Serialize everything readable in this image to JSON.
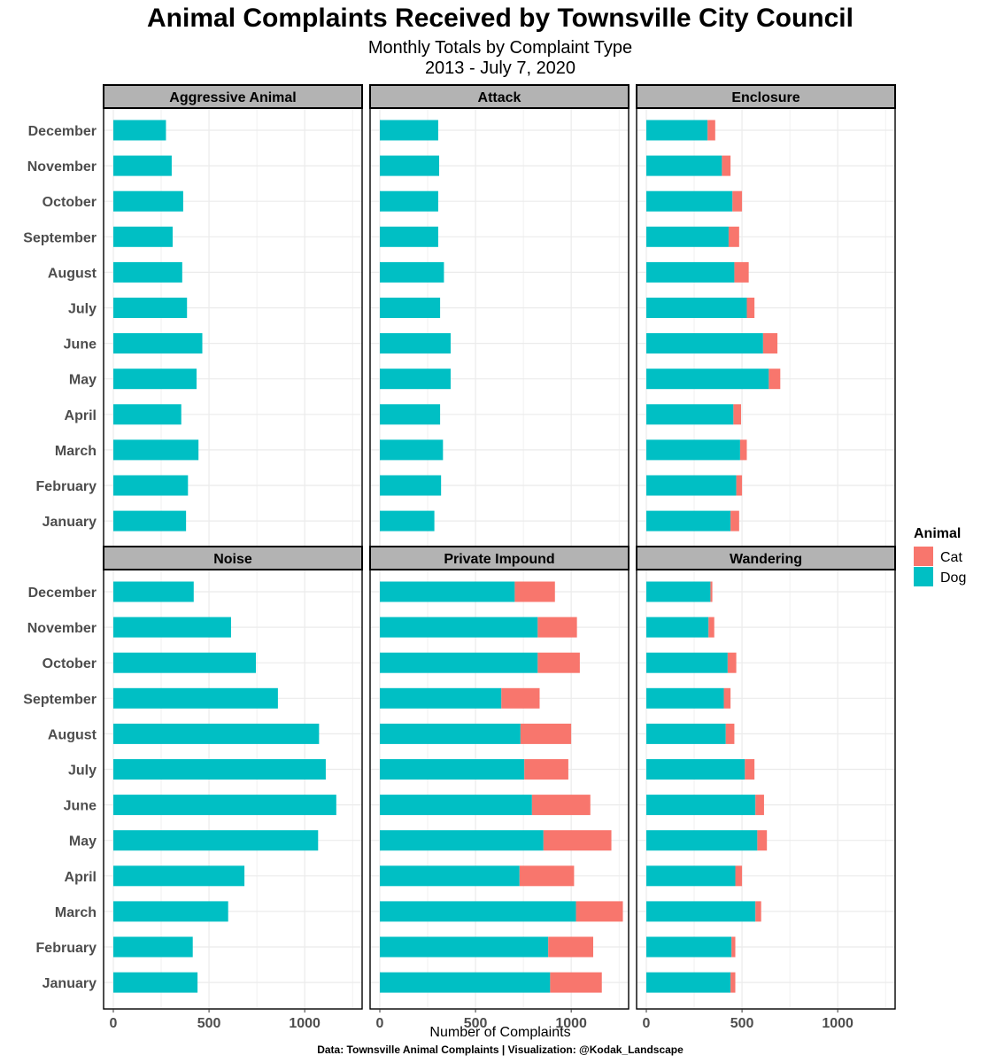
{
  "title": "Animal Complaints Received by Townsville City Council",
  "subtitle_line1": "Monthly Totals by Complaint Type",
  "subtitle_line2": "2013 - July 7, 2020",
  "caption": "Data: Townsville Animal Complaints | Visualization: @Kodak_Landscape",
  "colors": {
    "Dog": "#00BFC4",
    "Cat": "#F8766D",
    "strip_bg": "#b3b3b3",
    "grid": "#ebebeb"
  },
  "chart_data": {
    "type": "bar",
    "orientation": "horizontal",
    "stacked": true,
    "facets": [
      "Aggressive Animal",
      "Attack",
      "Enclosure",
      "Noise",
      "Private Impound",
      "Wandering"
    ],
    "categories": [
      "December",
      "November",
      "October",
      "September",
      "August",
      "July",
      "June",
      "May",
      "April",
      "March",
      "February",
      "January"
    ],
    "xlabel": "Number of Complaints",
    "ylabel": "",
    "xlim": [
      0,
      1300
    ],
    "xticks": [
      0,
      500,
      1000
    ],
    "grid": true,
    "legend": {
      "title": "Animal",
      "position": "right",
      "entries": [
        "Cat",
        "Dog"
      ]
    },
    "panels": [
      {
        "facet": "Aggressive Animal",
        "series": [
          {
            "name": "Dog",
            "values": [
              275,
              305,
              365,
              310,
              360,
              385,
              465,
              435,
              355,
              445,
              390,
              380
            ]
          },
          {
            "name": "Cat",
            "values": [
              0,
              0,
              0,
              0,
              0,
              0,
              0,
              0,
              0,
              0,
              0,
              0
            ]
          }
        ]
      },
      {
        "facet": "Attack",
        "series": [
          {
            "name": "Dog",
            "values": [
              305,
              310,
              305,
              305,
              335,
              315,
              370,
              370,
              315,
              330,
              320,
              285
            ]
          },
          {
            "name": "Cat",
            "values": [
              0,
              0,
              0,
              0,
              0,
              0,
              0,
              0,
              0,
              0,
              0,
              0
            ]
          }
        ]
      },
      {
        "facet": "Enclosure",
        "series": [
          {
            "name": "Dog",
            "values": [
              320,
              395,
              450,
              430,
              460,
              525,
              610,
              640,
              455,
              490,
              470,
              440
            ]
          },
          {
            "name": "Cat",
            "values": [
              40,
              45,
              50,
              55,
              75,
              40,
              75,
              60,
              40,
              35,
              30,
              45
            ]
          }
        ]
      },
      {
        "facet": "Noise",
        "series": [
          {
            "name": "Dog",
            "values": [
              420,
              615,
              745,
              860,
              1075,
              1110,
              1165,
              1070,
              685,
              600,
              415,
              440
            ]
          },
          {
            "name": "Cat",
            "values": [
              0,
              0,
              0,
              0,
              0,
              0,
              0,
              0,
              0,
              0,
              0,
              0
            ]
          }
        ]
      },
      {
        "facet": "Private Impound",
        "series": [
          {
            "name": "Dog",
            "values": [
              705,
              825,
              825,
              635,
              735,
              755,
              795,
              855,
              730,
              1025,
              880,
              890
            ]
          },
          {
            "name": "Cat",
            "values": [
              210,
              205,
              220,
              200,
              265,
              230,
              305,
              355,
              285,
              245,
              235,
              270
            ]
          }
        ]
      },
      {
        "facet": "Wandering",
        "series": [
          {
            "name": "Dog",
            "values": [
              335,
              325,
              425,
              405,
              415,
              515,
              570,
              580,
              465,
              570,
              445,
              440
            ]
          },
          {
            "name": "Cat",
            "values": [
              10,
              30,
              45,
              35,
              45,
              50,
              45,
              50,
              35,
              30,
              20,
              25
            ]
          }
        ]
      }
    ]
  }
}
